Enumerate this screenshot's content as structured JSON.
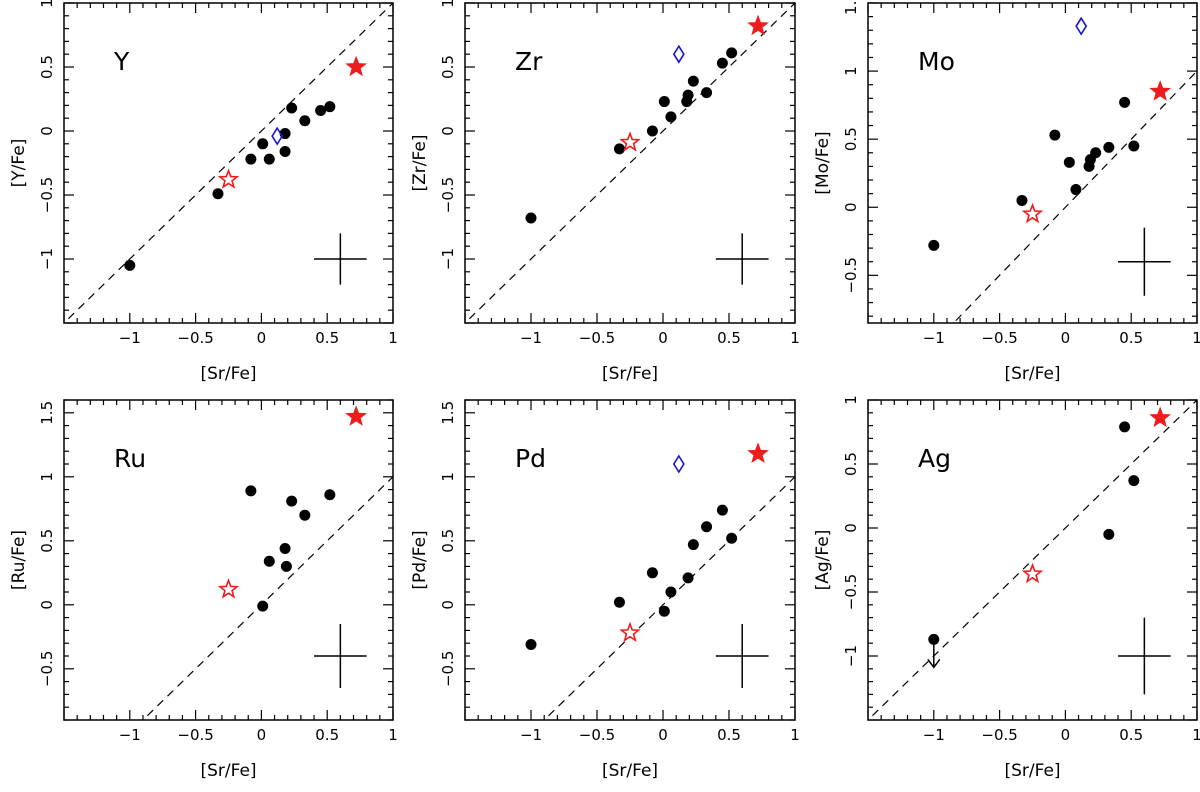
{
  "chart_data": [
    {
      "type": "scatter",
      "panel_label": "Y",
      "xlabel": "[Sr/Fe]",
      "ylabel": "[Y/Fe]",
      "xlim": [
        -1.5,
        1
      ],
      "ylim": [
        -1.5,
        1
      ],
      "xticks": [
        {
          "v": -1,
          "label": "−1"
        },
        {
          "v": -0.5,
          "label": "−0.5"
        },
        {
          "v": 0,
          "label": "0"
        },
        {
          "v": 0.5,
          "label": "0.5"
        },
        {
          "v": 1,
          "label": "1"
        }
      ],
      "yticks": [
        {
          "v": -1,
          "label": "−1"
        },
        {
          "v": -0.5,
          "label": "−0.5"
        },
        {
          "v": 0,
          "label": "0"
        },
        {
          "v": 0.5,
          "label": "0.5"
        },
        {
          "v": 1,
          "label": "1"
        }
      ],
      "points": [
        {
          "x": -1.0,
          "y": -1.05
        },
        {
          "x": -0.33,
          "y": -0.49
        },
        {
          "x": -0.08,
          "y": -0.22
        },
        {
          "x": 0.01,
          "y": -0.1
        },
        {
          "x": 0.06,
          "y": -0.22
        },
        {
          "x": 0.18,
          "y": -0.02
        },
        {
          "x": 0.18,
          "y": -0.16
        },
        {
          "x": 0.23,
          "y": 0.18
        },
        {
          "x": 0.33,
          "y": 0.08
        },
        {
          "x": 0.45,
          "y": 0.16
        },
        {
          "x": 0.52,
          "y": 0.19
        }
      ],
      "open_stars": [
        {
          "x": -0.25,
          "y": -0.38
        }
      ],
      "filled_stars": [
        {
          "x": 0.72,
          "y": 0.5
        }
      ],
      "diamonds": [
        {
          "x": 0.12,
          "y": -0.04
        }
      ],
      "upper_limits": [],
      "error_bar": {
        "x": 0.6,
        "y": -1.0,
        "dx": 0.2,
        "dy": 0.2
      }
    },
    {
      "type": "scatter",
      "panel_label": "Zr",
      "xlabel": "[Sr/Fe]",
      "ylabel": "[Zr/Fe]",
      "xlim": [
        -1.5,
        1
      ],
      "ylim": [
        -1.5,
        1
      ],
      "xticks": [
        {
          "v": -1,
          "label": "−1"
        },
        {
          "v": -0.5,
          "label": "−0.5"
        },
        {
          "v": 0,
          "label": "0"
        },
        {
          "v": 0.5,
          "label": "0.5"
        },
        {
          "v": 1,
          "label": "1"
        }
      ],
      "yticks": [
        {
          "v": -1,
          "label": "−1"
        },
        {
          "v": -0.5,
          "label": "−0.5"
        },
        {
          "v": 0,
          "label": "0"
        },
        {
          "v": 0.5,
          "label": "0.5"
        },
        {
          "v": 1,
          "label": "1"
        }
      ],
      "points": [
        {
          "x": -1.0,
          "y": -0.68
        },
        {
          "x": -0.33,
          "y": -0.14
        },
        {
          "x": -0.08,
          "y": 0.0
        },
        {
          "x": 0.01,
          "y": 0.23
        },
        {
          "x": 0.06,
          "y": 0.11
        },
        {
          "x": 0.18,
          "y": 0.23
        },
        {
          "x": 0.19,
          "y": 0.28
        },
        {
          "x": 0.23,
          "y": 0.39
        },
        {
          "x": 0.33,
          "y": 0.3
        },
        {
          "x": 0.45,
          "y": 0.53
        },
        {
          "x": 0.52,
          "y": 0.61
        }
      ],
      "open_stars": [
        {
          "x": -0.25,
          "y": -0.09
        }
      ],
      "filled_stars": [
        {
          "x": 0.72,
          "y": 0.82
        }
      ],
      "diamonds": [
        {
          "x": 0.12,
          "y": 0.6
        }
      ],
      "upper_limits": [],
      "error_bar": {
        "x": 0.6,
        "y": -1.0,
        "dx": 0.2,
        "dy": 0.2
      }
    },
    {
      "type": "scatter",
      "panel_label": "Mo",
      "xlabel": "[Sr/Fe]",
      "ylabel": "[Mo/Fe]",
      "xlim": [
        -1.5,
        1
      ],
      "ylim": [
        -0.85,
        1.5
      ],
      "xticks": [
        {
          "v": -1,
          "label": "−1"
        },
        {
          "v": -0.5,
          "label": "−0.5"
        },
        {
          "v": 0,
          "label": "0"
        },
        {
          "v": 0.5,
          "label": "0.5"
        },
        {
          "v": 1,
          "label": "1"
        }
      ],
      "yticks": [
        {
          "v": -0.5,
          "label": "−0.5"
        },
        {
          "v": 0,
          "label": "0"
        },
        {
          "v": 0.5,
          "label": "0.5"
        },
        {
          "v": 1,
          "label": "1"
        },
        {
          "v": 1.5,
          "label": "1.5"
        }
      ],
      "points": [
        {
          "x": -1.0,
          "y": -0.28
        },
        {
          "x": -0.33,
          "y": 0.05
        },
        {
          "x": -0.08,
          "y": 0.53
        },
        {
          "x": 0.03,
          "y": 0.33
        },
        {
          "x": 0.08,
          "y": 0.13
        },
        {
          "x": 0.18,
          "y": 0.3
        },
        {
          "x": 0.19,
          "y": 0.35
        },
        {
          "x": 0.23,
          "y": 0.4
        },
        {
          "x": 0.33,
          "y": 0.44
        },
        {
          "x": 0.45,
          "y": 0.77
        },
        {
          "x": 0.52,
          "y": 0.45
        }
      ],
      "open_stars": [
        {
          "x": -0.25,
          "y": -0.05
        }
      ],
      "filled_stars": [
        {
          "x": 0.72,
          "y": 0.85
        }
      ],
      "diamonds": [
        {
          "x": 0.12,
          "y": 1.33
        }
      ],
      "upper_limits": [],
      "error_bar": {
        "x": 0.6,
        "y": -0.4,
        "dx": 0.2,
        "dy": 0.25
      }
    },
    {
      "type": "scatter",
      "panel_label": "Ru",
      "xlabel": "[Sr/Fe]",
      "ylabel": "[Ru/Fe]",
      "xlim": [
        -1.5,
        1
      ],
      "ylim": [
        -0.9,
        1.6
      ],
      "xticks": [
        {
          "v": -1,
          "label": "−1"
        },
        {
          "v": -0.5,
          "label": "−0.5"
        },
        {
          "v": 0,
          "label": "0"
        },
        {
          "v": 0.5,
          "label": "0.5"
        },
        {
          "v": 1,
          "label": "1"
        }
      ],
      "yticks": [
        {
          "v": -0.5,
          "label": "−0.5"
        },
        {
          "v": 0,
          "label": "0"
        },
        {
          "v": 0.5,
          "label": "0.5"
        },
        {
          "v": 1,
          "label": "1"
        },
        {
          "v": 1.5,
          "label": "1.5"
        }
      ],
      "points": [
        {
          "x": -0.08,
          "y": 0.89
        },
        {
          "x": 0.01,
          "y": -0.01
        },
        {
          "x": 0.06,
          "y": 0.34
        },
        {
          "x": 0.18,
          "y": 0.44
        },
        {
          "x": 0.19,
          "y": 0.3
        },
        {
          "x": 0.23,
          "y": 0.81
        },
        {
          "x": 0.33,
          "y": 0.7
        },
        {
          "x": 0.52,
          "y": 0.86
        }
      ],
      "open_stars": [
        {
          "x": -0.25,
          "y": 0.12
        }
      ],
      "filled_stars": [
        {
          "x": 0.72,
          "y": 1.47
        }
      ],
      "diamonds": [],
      "upper_limits": [],
      "error_bar": {
        "x": 0.6,
        "y": -0.4,
        "dx": 0.2,
        "dy": 0.25
      }
    },
    {
      "type": "scatter",
      "panel_label": "Pd",
      "xlabel": "[Sr/Fe]",
      "ylabel": "[Pd/Fe]",
      "xlim": [
        -1.5,
        1
      ],
      "ylim": [
        -0.9,
        1.6
      ],
      "xticks": [
        {
          "v": -1,
          "label": "−1"
        },
        {
          "v": -0.5,
          "label": "−0.5"
        },
        {
          "v": 0,
          "label": "0"
        },
        {
          "v": 0.5,
          "label": "0.5"
        },
        {
          "v": 1,
          "label": "1"
        }
      ],
      "yticks": [
        {
          "v": -0.5,
          "label": "−0.5"
        },
        {
          "v": 0,
          "label": "0"
        },
        {
          "v": 0.5,
          "label": "0.5"
        },
        {
          "v": 1,
          "label": "1"
        },
        {
          "v": 1.5,
          "label": "1.5"
        }
      ],
      "points": [
        {
          "x": -1.0,
          "y": -0.31
        },
        {
          "x": -0.33,
          "y": 0.02
        },
        {
          "x": -0.08,
          "y": 0.25
        },
        {
          "x": 0.01,
          "y": -0.05
        },
        {
          "x": 0.06,
          "y": 0.1
        },
        {
          "x": 0.19,
          "y": 0.21
        },
        {
          "x": 0.23,
          "y": 0.47
        },
        {
          "x": 0.33,
          "y": 0.61
        },
        {
          "x": 0.45,
          "y": 0.74
        },
        {
          "x": 0.52,
          "y": 0.52
        }
      ],
      "open_stars": [
        {
          "x": -0.25,
          "y": -0.22
        }
      ],
      "filled_stars": [
        {
          "x": 0.72,
          "y": 1.18
        }
      ],
      "diamonds": [
        {
          "x": 0.12,
          "y": 1.1
        }
      ],
      "upper_limits": [],
      "error_bar": {
        "x": 0.6,
        "y": -0.4,
        "dx": 0.2,
        "dy": 0.25
      }
    },
    {
      "type": "scatter",
      "panel_label": "Ag",
      "xlabel": "[Sr/Fe]",
      "ylabel": "[Ag/Fe]",
      "xlim": [
        -1.5,
        1
      ],
      "ylim": [
        -1.5,
        1
      ],
      "xticks": [
        {
          "v": -1,
          "label": "−1"
        },
        {
          "v": -0.5,
          "label": "−0.5"
        },
        {
          "v": 0,
          "label": "0"
        },
        {
          "v": 0.5,
          "label": "0.5"
        },
        {
          "v": 1,
          "label": "1"
        }
      ],
      "yticks": [
        {
          "v": -1,
          "label": "−1"
        },
        {
          "v": -0.5,
          "label": "−0.5"
        },
        {
          "v": 0,
          "label": "0"
        },
        {
          "v": 0.5,
          "label": "0.5"
        },
        {
          "v": 1,
          "label": "1"
        }
      ],
      "points": [
        {
          "x": 0.33,
          "y": -0.05
        },
        {
          "x": 0.45,
          "y": 0.79
        },
        {
          "x": 0.52,
          "y": 0.37
        }
      ],
      "open_stars": [
        {
          "x": -0.25,
          "y": -0.36
        }
      ],
      "filled_stars": [
        {
          "x": 0.72,
          "y": 0.86
        }
      ],
      "diamonds": [],
      "upper_limits": [
        {
          "x": -1.0,
          "y": -0.87
        }
      ],
      "error_bar": {
        "x": 0.6,
        "y": -1.0,
        "dx": 0.2,
        "dy": 0.3
      }
    }
  ],
  "colors": {
    "axis": "#000000",
    "points": "#000000",
    "star": "#ee1c1c",
    "diamond": "#1515d0"
  }
}
